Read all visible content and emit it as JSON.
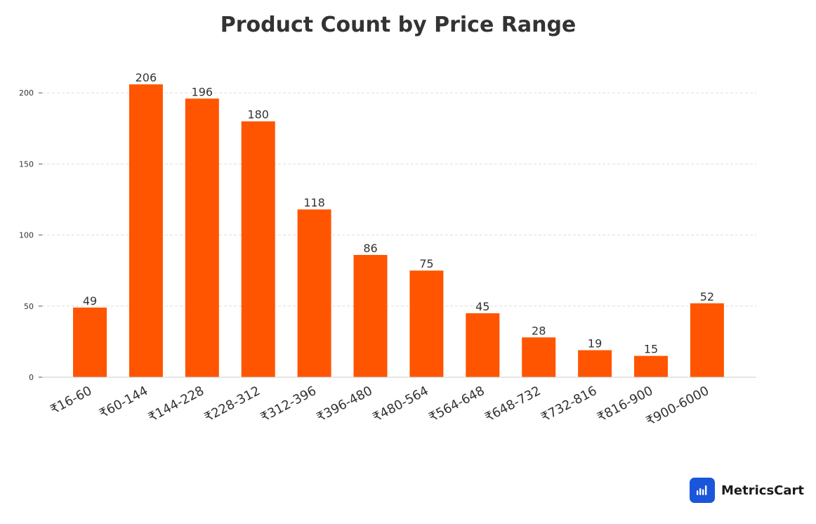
{
  "chart_data": {
    "type": "bar",
    "title": "Product Count by Price Range",
    "xlabel": "",
    "ylabel": "",
    "categories": [
      "₹16-60",
      "₹60-144",
      "₹144-228",
      "₹228-312",
      "₹312-396",
      "₹396-480",
      "₹480-564",
      "₹564-648",
      "₹648-732",
      "₹732-816",
      "₹816-900",
      "₹900-6000"
    ],
    "values": [
      49,
      206,
      196,
      180,
      118,
      86,
      75,
      45,
      28,
      19,
      15,
      52
    ],
    "ylim": [
      0,
      210
    ],
    "yticks": [
      0,
      50,
      100,
      150,
      200
    ],
    "grid": true,
    "data_labels": true,
    "bar_color": "#ff5500",
    "grid_color": "#dddddd",
    "axis_color": "#cccccc"
  },
  "brand": {
    "name": "MetricsCart",
    "icon": "bar-chart-logo-icon",
    "color": "#1a56db"
  }
}
